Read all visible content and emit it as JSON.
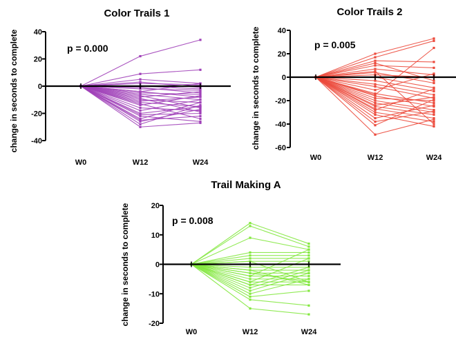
{
  "chart_data": [
    {
      "type": "line",
      "title": "Color Trails 1",
      "ylabel": "change in seconds to complete",
      "xlabel": "",
      "categories": [
        "W0",
        "W12",
        "W24"
      ],
      "ylim": [
        -40,
        40
      ],
      "yticks": [
        -40,
        -20,
        0,
        20,
        40
      ],
      "annotation": "p = 0.000",
      "color": "#a040b8",
      "series": [
        {
          "values": [
            0,
            22,
            34
          ]
        },
        {
          "values": [
            0,
            9,
            12
          ]
        },
        {
          "values": [
            0,
            5,
            2
          ]
        },
        {
          "values": [
            0,
            3,
            -1
          ]
        },
        {
          "values": [
            0,
            2,
            1
          ]
        },
        {
          "values": [
            0,
            0,
            -2
          ]
        },
        {
          "values": [
            0,
            -1,
            -5
          ]
        },
        {
          "values": [
            0,
            -2,
            -3
          ]
        },
        {
          "values": [
            0,
            -4,
            -8
          ]
        },
        {
          "values": [
            0,
            -5,
            -6
          ]
        },
        {
          "values": [
            0,
            -6,
            -10
          ]
        },
        {
          "values": [
            0,
            -8,
            -4
          ]
        },
        {
          "values": [
            0,
            -10,
            -12
          ]
        },
        {
          "values": [
            0,
            -11,
            -8
          ]
        },
        {
          "values": [
            0,
            -12,
            -15
          ]
        },
        {
          "values": [
            0,
            -14,
            -7
          ]
        },
        {
          "values": [
            0,
            -16,
            -18
          ]
        },
        {
          "values": [
            0,
            -18,
            -10
          ]
        },
        {
          "values": [
            0,
            -20,
            -15
          ]
        },
        {
          "values": [
            0,
            -21,
            -20
          ]
        },
        {
          "values": [
            0,
            -22,
            -26
          ]
        },
        {
          "values": [
            0,
            -24,
            -12
          ]
        },
        {
          "values": [
            0,
            -25,
            -22
          ]
        },
        {
          "values": [
            0,
            -26,
            -17
          ]
        },
        {
          "values": [
            0,
            -28,
            -14
          ]
        },
        {
          "values": [
            0,
            -30,
            -27
          ]
        },
        {
          "values": [
            0,
            -4,
            2
          ]
        },
        {
          "values": [
            0,
            -7,
            -16
          ]
        },
        {
          "values": [
            0,
            -13,
            -24
          ]
        },
        {
          "values": [
            0,
            -9,
            -19
          ]
        }
      ]
    },
    {
      "type": "line",
      "title": "Color Trails 2",
      "ylabel": "change in seconds to complete",
      "xlabel": "",
      "categories": [
        "W0",
        "W12",
        "W24"
      ],
      "ylim": [
        -60,
        40
      ],
      "yticks": [
        -60,
        -40,
        -20,
        0,
        20,
        40
      ],
      "annotation": "p = 0.005",
      "color": "#ec4a3c",
      "series": [
        {
          "values": [
            0,
            20,
            33
          ]
        },
        {
          "values": [
            0,
            17,
            31
          ]
        },
        {
          "values": [
            0,
            14,
            13
          ]
        },
        {
          "values": [
            0,
            10,
            8
          ]
        },
        {
          "values": [
            0,
            7,
            2
          ]
        },
        {
          "values": [
            0,
            4,
            -5
          ]
        },
        {
          "values": [
            0,
            2,
            0
          ]
        },
        {
          "values": [
            0,
            0,
            -9
          ]
        },
        {
          "values": [
            0,
            -3,
            -12
          ]
        },
        {
          "values": [
            0,
            -6,
            -15
          ]
        },
        {
          "values": [
            0,
            -8,
            -18
          ]
        },
        {
          "values": [
            0,
            -11,
            3
          ]
        },
        {
          "values": [
            0,
            -14,
            -22
          ]
        },
        {
          "values": [
            0,
            -16,
            -25
          ]
        },
        {
          "values": [
            0,
            -18,
            -20
          ]
        },
        {
          "values": [
            0,
            -20,
            -28
          ]
        },
        {
          "values": [
            0,
            -22,
            -30
          ]
        },
        {
          "values": [
            0,
            -24,
            -17
          ]
        },
        {
          "values": [
            0,
            -25,
            -32
          ]
        },
        {
          "values": [
            0,
            -27,
            -35
          ]
        },
        {
          "values": [
            0,
            -28,
            -10
          ]
        },
        {
          "values": [
            0,
            -30,
            -38
          ]
        },
        {
          "values": [
            0,
            -32,
            -42
          ]
        },
        {
          "values": [
            0,
            -35,
            -24
          ]
        },
        {
          "values": [
            0,
            -38,
            -29
          ]
        },
        {
          "values": [
            0,
            -41,
            -19
          ]
        },
        {
          "values": [
            0,
            -49,
            -36
          ]
        },
        {
          "values": [
            0,
            12,
            -3
          ]
        },
        {
          "values": [
            0,
            5,
            -40
          ]
        },
        {
          "values": [
            0,
            -15,
            25
          ]
        }
      ]
    },
    {
      "type": "line",
      "title": "Trail Making A",
      "ylabel": "change in seconds to complete",
      "xlabel": "",
      "categories": [
        "W0",
        "W12",
        "W24"
      ],
      "ylim": [
        -20,
        20
      ],
      "yticks": [
        -20,
        -10,
        0,
        10,
        20
      ],
      "annotation": "p = 0.008",
      "color": "#84e840",
      "series": [
        {
          "values": [
            0,
            14,
            7
          ]
        },
        {
          "values": [
            0,
            13,
            6
          ]
        },
        {
          "values": [
            0,
            9,
            5
          ]
        },
        {
          "values": [
            0,
            4,
            4
          ]
        },
        {
          "values": [
            0,
            3,
            3
          ]
        },
        {
          "values": [
            0,
            2,
            2
          ]
        },
        {
          "values": [
            0,
            1,
            1
          ]
        },
        {
          "values": [
            0,
            0,
            0
          ]
        },
        {
          "values": [
            0,
            -1,
            -1
          ]
        },
        {
          "values": [
            0,
            -2,
            -2
          ]
        },
        {
          "values": [
            0,
            -3,
            -3
          ]
        },
        {
          "values": [
            0,
            -4,
            -4
          ]
        },
        {
          "values": [
            0,
            -5,
            -5
          ]
        },
        {
          "values": [
            0,
            -6,
            -6
          ]
        },
        {
          "values": [
            0,
            -7,
            -7
          ]
        },
        {
          "values": [
            0,
            -8,
            -2
          ]
        },
        {
          "values": [
            0,
            -9,
            -3
          ]
        },
        {
          "values": [
            0,
            -10,
            -5
          ]
        },
        {
          "values": [
            0,
            -11,
            -9
          ]
        },
        {
          "values": [
            0,
            -12,
            -14
          ]
        },
        {
          "values": [
            0,
            -15,
            -17
          ]
        },
        {
          "values": [
            0,
            -6,
            2
          ]
        },
        {
          "values": [
            0,
            -3,
            -6
          ]
        },
        {
          "values": [
            0,
            -4,
            5
          ]
        },
        {
          "values": [
            0,
            1,
            -6
          ]
        },
        {
          "values": [
            0,
            -7,
            -1
          ]
        },
        {
          "values": [
            0,
            -2,
            -7
          ]
        }
      ]
    }
  ]
}
